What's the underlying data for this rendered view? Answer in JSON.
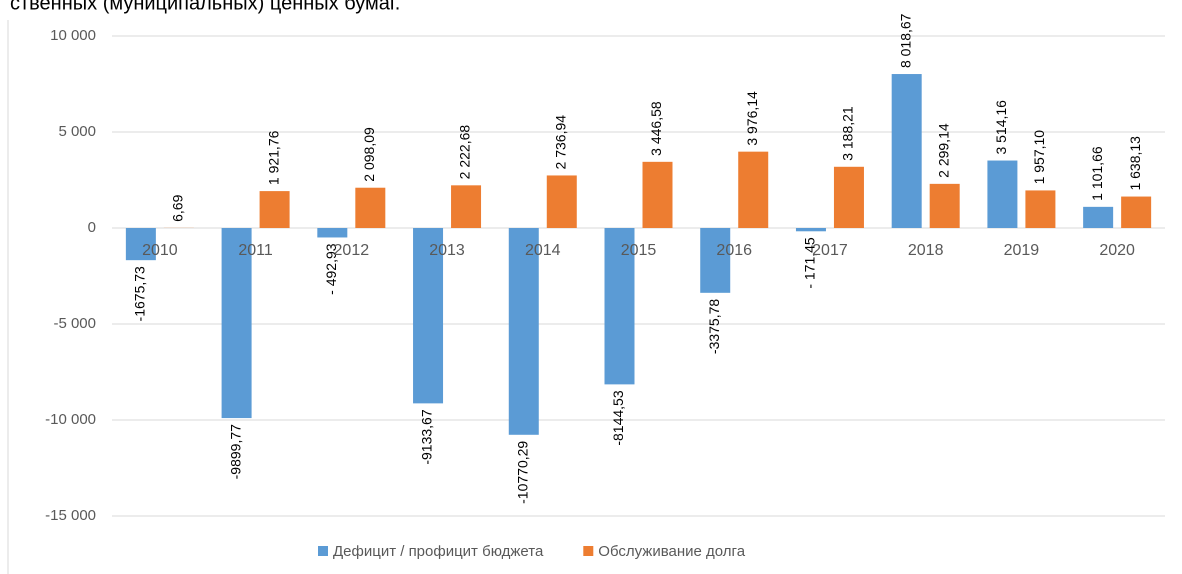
{
  "caption": "ственных (муниципальных) ценных бумаг.",
  "chart_data": {
    "type": "bar",
    "categories": [
      "2010",
      "2011",
      "2012",
      "2013",
      "2014",
      "2015",
      "2016",
      "2017",
      "2018",
      "2019",
      "2020"
    ],
    "series": [
      {
        "name": "Дефицит / профицит бюджета",
        "color": "#5b9bd5",
        "values": [
          -1675.73,
          -9899.77,
          -492.93,
          -9133.67,
          -10770.29,
          -8144.53,
          -3375.78,
          -171.45,
          8018.67,
          3514.16,
          1101.66
        ],
        "value_labels": [
          "-1675,73",
          "-9899,77",
          "- 492,93",
          "-9133,67",
          "-10770,29",
          "-8144,53",
          "-3375,78",
          "- 171,45",
          "8 018,67",
          "3 514,16",
          "1 101,66"
        ]
      },
      {
        "name": "Обслуживание долга",
        "color": "#ed7d31",
        "values": [
          6.69,
          1921.76,
          2098.09,
          2222.68,
          2736.94,
          3446.58,
          3976.14,
          3188.21,
          2299.14,
          1957.1,
          1638.13
        ],
        "value_labels": [
          "6,69",
          "1 921,76",
          "2 098,09",
          "2 222,68",
          "2 736,94",
          "3 446,58",
          "3 976,14",
          "3 188,21",
          "2 299,14",
          "1 957,10",
          "1 638,13"
        ]
      }
    ],
    "ylim": [
      -15000,
      10000
    ],
    "yticks": [
      {
        "value": -15000,
        "label": "-15 000"
      },
      {
        "value": -10000,
        "label": "-10 000"
      },
      {
        "value": -5000,
        "label": "-5 000"
      },
      0,
      {
        "value": 5000,
        "label": "5 000"
      },
      {
        "value": 10000,
        "label": "10 000"
      }
    ],
    "grid": true,
    "legend": "bottom"
  }
}
